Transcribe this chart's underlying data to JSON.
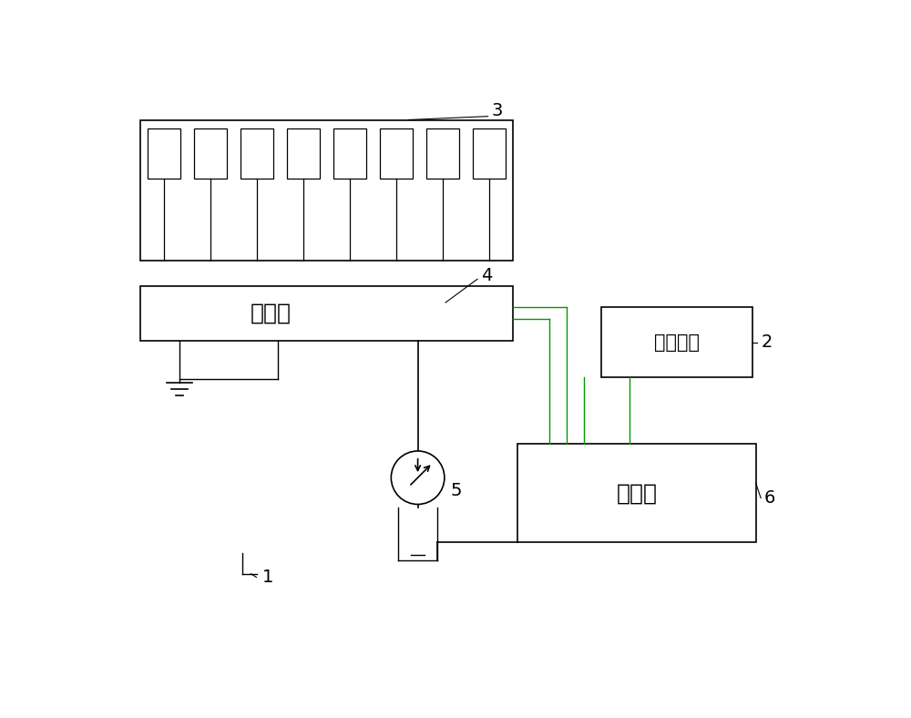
{
  "bg_color": "#ffffff",
  "lc": "#000000",
  "gc": "#009900",
  "multi_valve_label": "多路阀",
  "control_label": "控制器",
  "operation_label": "操纵装置",
  "label_1": "1",
  "label_2": "2",
  "label_3": "3",
  "label_4": "4",
  "label_5": "5",
  "label_6": "6",
  "n_cylinders": 8,
  "figsize": [
    10.0,
    7.88
  ],
  "dpi": 100,
  "note_line_color": "#666666"
}
